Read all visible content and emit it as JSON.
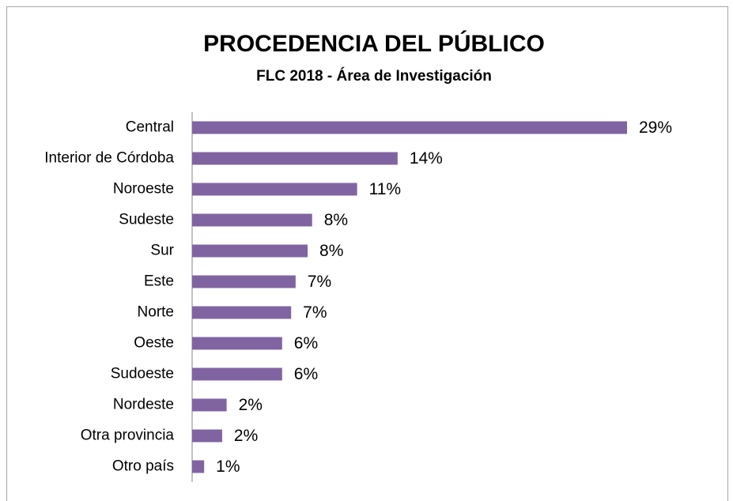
{
  "chart_data": {
    "type": "bar",
    "orientation": "horizontal",
    "title": "PROCEDENCIA DEL PÚBLICO",
    "subtitle": "FLC 2018 - Área de Investigación",
    "categories": [
      "Central",
      "Interior de Córdoba",
      "Noroeste",
      "Sudeste",
      "Sur",
      "Este",
      "Norte",
      "Oeste",
      "Sudoeste",
      "Nordeste",
      "Otra provincia",
      "Otro país"
    ],
    "values": [
      29,
      13.7,
      11.0,
      8.0,
      7.7,
      6.9,
      6.6,
      6.0,
      6.0,
      2.3,
      2.0,
      0.8
    ],
    "value_labels": [
      "29%",
      "14%",
      "11%",
      "8%",
      "8%",
      "7%",
      "7%",
      "6%",
      "6%",
      "2%",
      "2%",
      "1%"
    ],
    "color": "#8064a2",
    "xlim": [
      0,
      29
    ]
  }
}
